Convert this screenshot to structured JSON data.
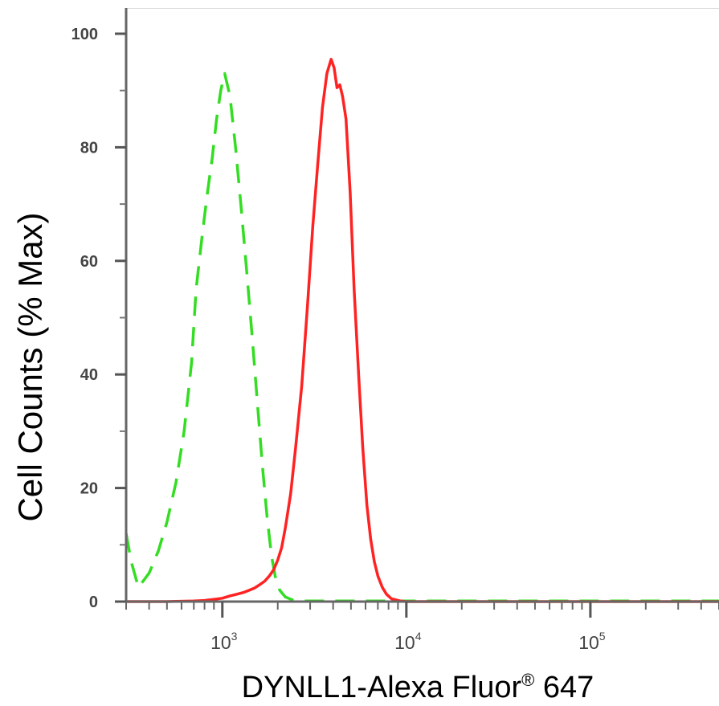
{
  "chart_data": {
    "type": "line",
    "title": "",
    "xlabel_main": "DYNLL1-Alexa Fluor",
    "xlabel_sup": "®",
    "xlabel_tail": " 647",
    "ylabel": "Cell Counts (% Max)",
    "xscale": "log",
    "xlim": [
      300,
      500000
    ],
    "ylim": [
      0,
      100
    ],
    "yticks": [
      {
        "value": 0,
        "label": "0"
      },
      {
        "value": 20,
        "label": "20"
      },
      {
        "value": 40,
        "label": "40"
      },
      {
        "value": 60,
        "label": "60"
      },
      {
        "value": 80,
        "label": "80"
      },
      {
        "value": 100,
        "label": "100"
      }
    ],
    "xticks": [
      {
        "value": 1000,
        "base": "10",
        "exp": "3"
      },
      {
        "value": 10000,
        "base": "10",
        "exp": "4"
      },
      {
        "value": 100000,
        "base": "10",
        "exp": "5"
      }
    ],
    "grid": false,
    "legend": "none",
    "series": [
      {
        "color": "#33dd22",
        "style": "dashed",
        "x": [
          300,
          320,
          350,
          400,
          450,
          500,
          560,
          620,
          680,
          720,
          780,
          830,
          880,
          930,
          980,
          1030,
          1100,
          1180,
          1260,
          1350,
          1450,
          1550,
          1650,
          1750,
          1850,
          1950,
          2050,
          2200,
          2400,
          2700,
          3000,
          4000,
          6000,
          10000,
          30000,
          100000,
          500000
        ],
        "y": [
          12,
          7,
          2.5,
          5,
          9,
          14,
          21,
          30,
          42,
          55,
          65,
          72,
          78,
          85,
          90,
          93,
          89,
          80,
          70,
          59,
          47,
          35,
          24,
          15,
          8,
          4,
          2,
          0.8,
          0.3,
          0.1,
          0.1,
          0.1,
          0.1,
          0.1,
          0.1,
          0.1,
          0.1
        ]
      },
      {
        "color": "#ff2222",
        "style": "solid",
        "x": [
          300,
          500,
          700,
          800,
          900,
          1000,
          1100,
          1200,
          1300,
          1400,
          1500,
          1600,
          1700,
          1800,
          1900,
          2000,
          2100,
          2200,
          2350,
          2500,
          2700,
          2900,
          3100,
          3300,
          3500,
          3700,
          3900,
          4050,
          4200,
          4350,
          4500,
          4700,
          4950,
          5200,
          5500,
          5800,
          6100,
          6400,
          6700,
          7000,
          7400,
          7800,
          8300,
          8800,
          9300,
          10000,
          12000,
          20000,
          50000,
          100000,
          500000
        ],
        "y": [
          0,
          0,
          0.1,
          0.2,
          0.4,
          0.6,
          1,
          1.3,
          1.6,
          2,
          2.4,
          3,
          3.6,
          4.5,
          5.6,
          7.3,
          9.5,
          13,
          19,
          27,
          38,
          52,
          66,
          77,
          87,
          93,
          95.5,
          94,
          90.5,
          91,
          89,
          85,
          72,
          55,
          40,
          27,
          17,
          11,
          7,
          4.5,
          2.5,
          1.3,
          0.5,
          0.3,
          0.1,
          0,
          0,
          0,
          0,
          0,
          0
        ]
      }
    ]
  }
}
